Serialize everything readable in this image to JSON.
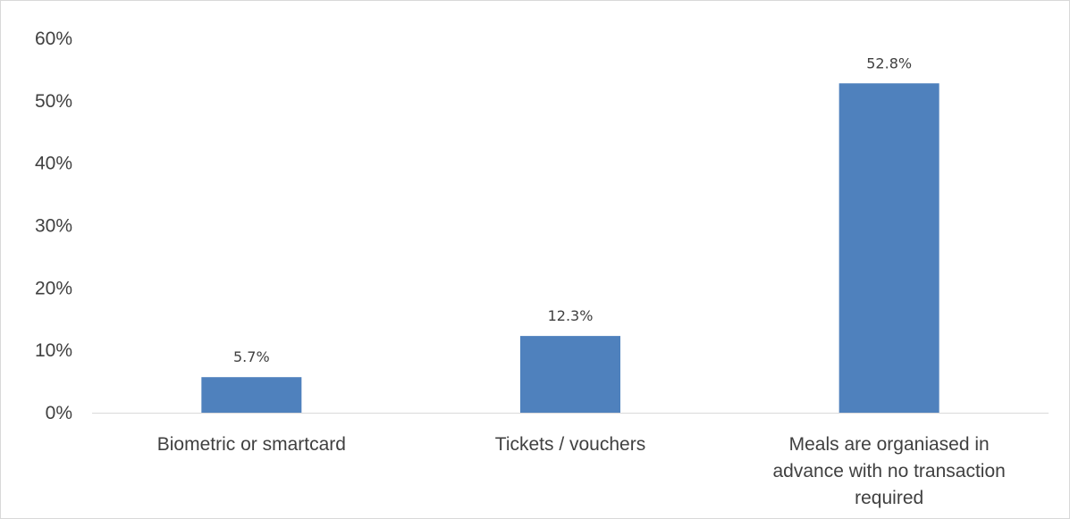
{
  "chart_data": {
    "type": "bar",
    "categories": [
      [
        "Biometric or smartcard"
      ],
      [
        "Tickets / vouchers"
      ],
      [
        "Meals are organiased in",
        "advance with no transaction",
        "required"
      ]
    ],
    "values": [
      5.7,
      12.3,
      52.8
    ],
    "data_labels": [
      "5.7%",
      "12.3%",
      "52.8%"
    ],
    "yticks": [
      0,
      10,
      20,
      30,
      40,
      50,
      60
    ],
    "ytick_labels": [
      "0%",
      "10%",
      "20%",
      "30%",
      "40%",
      "50%",
      "60%"
    ],
    "ylim": [
      0,
      60
    ],
    "grid": false,
    "legend": "none",
    "colors": {
      "bar": "#4f81bd",
      "axis": "#d9d9d9",
      "text": "#404040"
    }
  }
}
